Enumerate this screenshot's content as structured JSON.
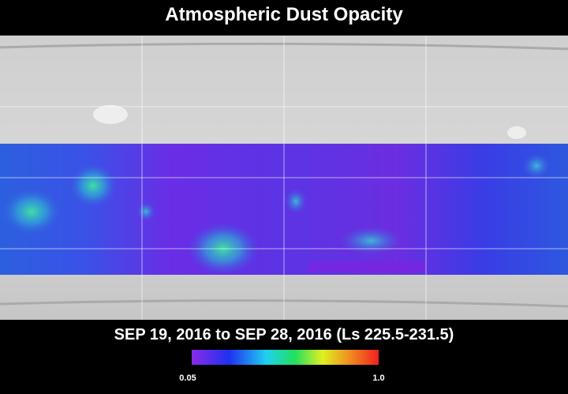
{
  "header": {
    "title": "Atmospheric Dust Opacity"
  },
  "footer": {
    "date_range": "SEP 19, 2016 to SEP 28, 2016 (Ls 225.5-231.5)"
  },
  "colorbar": {
    "min_label": "0.05",
    "max_label": "1.0"
  }
}
